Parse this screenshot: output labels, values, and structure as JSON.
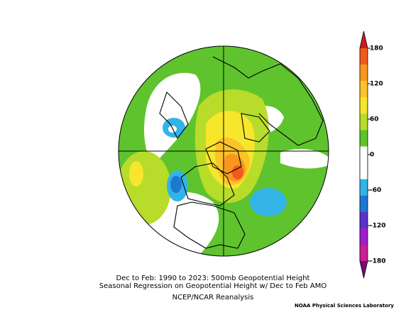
{
  "titles": [
    "Dec to Feb: 1990 to 2023: 500mb Geopotential Height",
    "Seasonal Regression on Geopotential Height  w/ Dec to Feb AMO",
    "NCEP/NCAR Reanalysis"
  ],
  "credit": "NOAA Physical Sciences Laboratory",
  "colorbar": {
    "ticks": [
      180,
      120,
      60,
      0,
      -60,
      -120,
      -180
    ],
    "lim": [
      -180,
      180
    ],
    "over_color": "#d01c1c",
    "under_color": "#780a78",
    "colors": [
      "#f05a1e",
      "#f8961e",
      "#fcc32a",
      "#f6e62c",
      "#b8dc2a",
      "#5fc32e",
      "#ffffff",
      "#ffffff",
      "#32b4e6",
      "#1e78d2",
      "#5a32c8",
      "#a01ec8",
      "#c81e96"
    ]
  }
}
